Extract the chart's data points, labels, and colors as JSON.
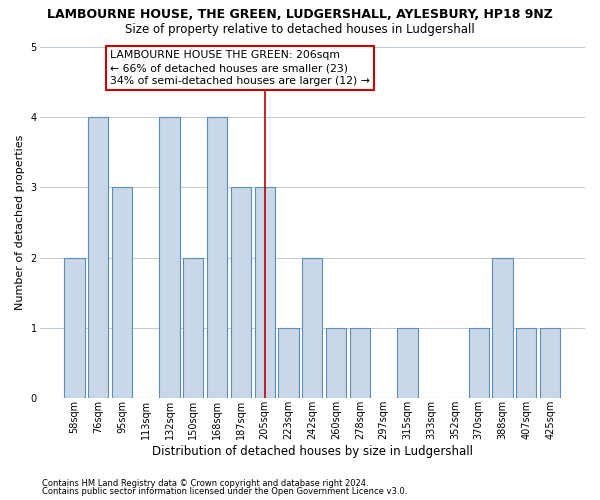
{
  "title": "LAMBOURNE HOUSE, THE GREEN, LUDGERSHALL, AYLESBURY, HP18 9NZ",
  "subtitle": "Size of property relative to detached houses in Ludgershall",
  "xlabel": "Distribution of detached houses by size in Ludgershall",
  "ylabel": "Number of detached properties",
  "categories": [
    "58sqm",
    "76sqm",
    "95sqm",
    "113sqm",
    "132sqm",
    "150sqm",
    "168sqm",
    "187sqm",
    "205sqm",
    "223sqm",
    "242sqm",
    "260sqm",
    "278sqm",
    "297sqm",
    "315sqm",
    "333sqm",
    "352sqm",
    "370sqm",
    "388sqm",
    "407sqm",
    "425sqm"
  ],
  "values": [
    2,
    4,
    3,
    0,
    4,
    2,
    4,
    3,
    3,
    1,
    2,
    1,
    1,
    0,
    1,
    0,
    0,
    1,
    2,
    1,
    1
  ],
  "bar_color": "#c8d8e8",
  "bar_edge_color": "#5b8db8",
  "highlight_index": 8,
  "highlight_line_color": "#bb0000",
  "ylim": [
    0,
    5
  ],
  "yticks": [
    0,
    1,
    2,
    3,
    4,
    5
  ],
  "annotation_text": "LAMBOURNE HOUSE THE GREEN: 206sqm\n← 66% of detached houses are smaller (23)\n34% of semi-detached houses are larger (12) →",
  "annotation_box_color": "#cc0000",
  "footer_line1": "Contains HM Land Registry data © Crown copyright and database right 2024.",
  "footer_line2": "Contains public sector information licensed under the Open Government Licence v3.0.",
  "background_color": "#ffffff",
  "grid_color": "#c0ccd8",
  "title_fontsize": 9,
  "subtitle_fontsize": 8.5,
  "xlabel_fontsize": 8.5,
  "ylabel_fontsize": 8,
  "tick_fontsize": 7,
  "annotation_fontsize": 7.8,
  "footer_fontsize": 6
}
